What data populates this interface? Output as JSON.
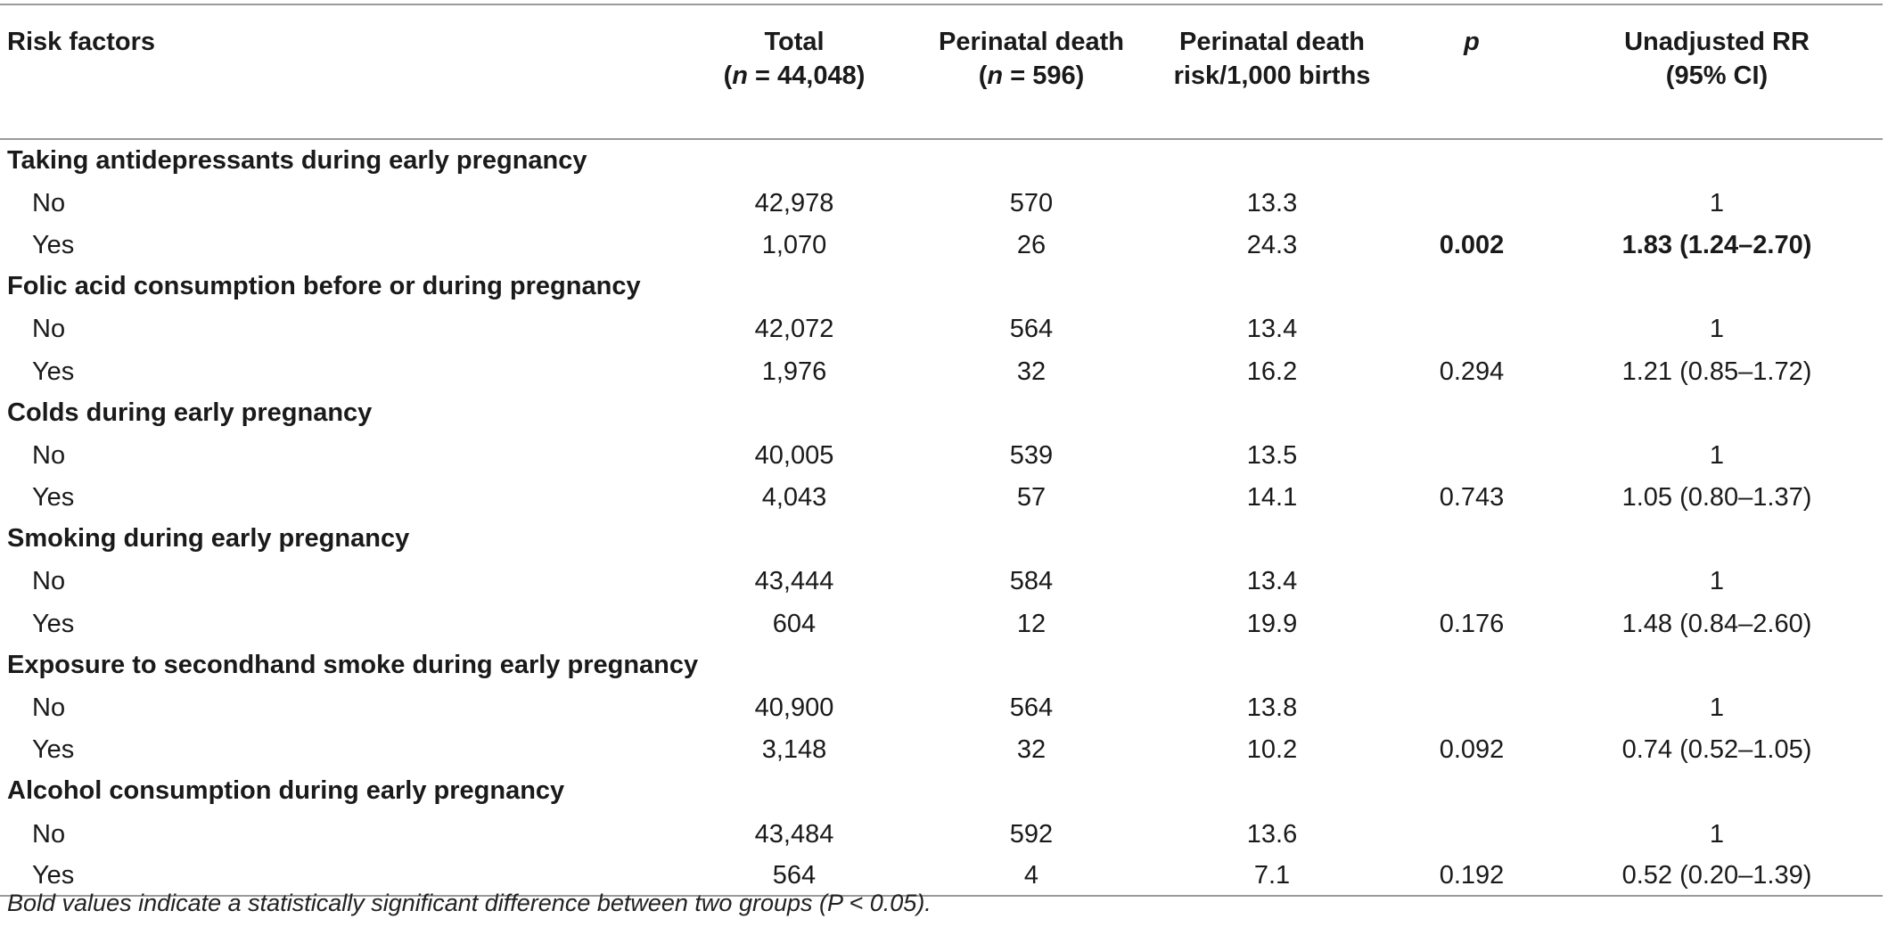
{
  "headers": {
    "risk_factors": "Risk factors",
    "total_l1": "Total",
    "total_l2_var": "n",
    "total_l2_val": " = 44,048)",
    "pd_l1": "Perinatal death",
    "pd_l2_var": "n",
    "pd_l2_val": " = 596)",
    "risk_l1": "Perinatal death",
    "risk_l2": "risk/1,000 births",
    "p": "p",
    "rr_l1": "Unadjusted RR",
    "rr_l2": "(95% CI)"
  },
  "groups": [
    {
      "title": "Taking antidepressants during early pregnancy",
      "rows": [
        {
          "level": "No",
          "total": "42,978",
          "deaths": "570",
          "risk": "13.3",
          "p": "",
          "rr": "1"
        },
        {
          "level": "Yes",
          "total": "1,070",
          "deaths": "26",
          "risk": "24.3",
          "p": "0.002",
          "rr": "1.83 (1.24–2.70)"
        }
      ]
    },
    {
      "title": "Folic acid consumption before or during pregnancy",
      "rows": [
        {
          "level": "No",
          "total": "42,072",
          "deaths": "564",
          "risk": "13.4",
          "p": "",
          "rr": "1"
        },
        {
          "level": "Yes",
          "total": "1,976",
          "deaths": "32",
          "risk": "16.2",
          "p": "0.294",
          "rr": "1.21 (0.85–1.72)"
        }
      ]
    },
    {
      "title": "Colds during early pregnancy",
      "rows": [
        {
          "level": "No",
          "total": "40,005",
          "deaths": "539",
          "risk": "13.5",
          "p": "",
          "rr": "1"
        },
        {
          "level": "Yes",
          "total": "4,043",
          "deaths": "57",
          "risk": "14.1",
          "p": "0.743",
          "rr": "1.05 (0.80–1.37)"
        }
      ]
    },
    {
      "title": "Smoking during early pregnancy",
      "rows": [
        {
          "level": "No",
          "total": "43,444",
          "deaths": "584",
          "risk": "13.4",
          "p": "",
          "rr": "1"
        },
        {
          "level": "Yes",
          "total": "604",
          "deaths": "12",
          "risk": "19.9",
          "p": "0.176",
          "rr": "1.48 (0.84–2.60)"
        }
      ]
    },
    {
      "title": "Exposure to secondhand smoke during early pregnancy",
      "rows": [
        {
          "level": "No",
          "total": "40,900",
          "deaths": "564",
          "risk": "13.8",
          "p": "",
          "rr": "1"
        },
        {
          "level": "Yes",
          "total": "3,148",
          "deaths": "32",
          "risk": "10.2",
          "p": "0.092",
          "rr": "0.74 (0.52–1.05)"
        }
      ]
    },
    {
      "title": "Alcohol consumption during early pregnancy",
      "rows": [
        {
          "level": "No",
          "total": "43,484",
          "deaths": "592",
          "risk": "13.6",
          "p": "",
          "rr": "1"
        },
        {
          "level": "Yes",
          "total": "564",
          "deaths": "4",
          "risk": "7.1",
          "p": "0.192",
          "rr": "0.52 (0.20–1.39)"
        }
      ]
    }
  ],
  "footnote": "Bold values indicate a statistically significant difference between two groups (P < 0.05)."
}
